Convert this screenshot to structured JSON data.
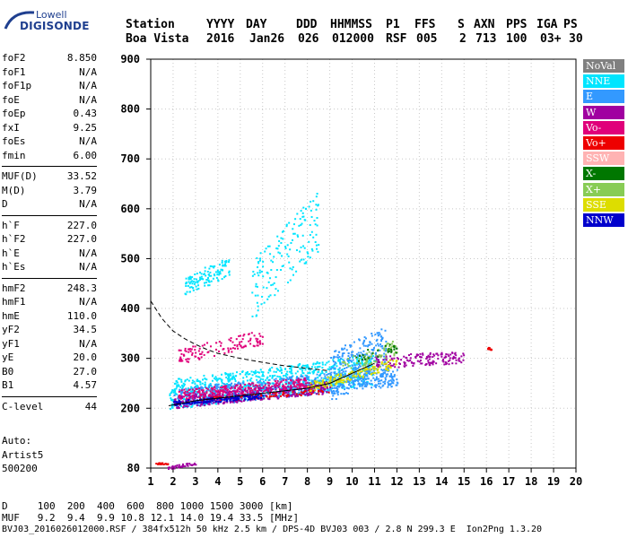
{
  "logo": {
    "top": "Lowell",
    "bottom": "DIGISONDE"
  },
  "header": {
    "labels": [
      "Station",
      "YYYY",
      "DAY",
      "DDD",
      "HHMMSS",
      "P1",
      "FFS",
      "S",
      "AXN",
      "PPS",
      "IGA",
      "PS"
    ],
    "values": [
      "Boa Vista",
      "2016",
      "Jan26",
      "026",
      "012000",
      "RSF",
      "005",
      "2",
      "713",
      "100",
      "03+",
      "30"
    ]
  },
  "params": [
    {
      "name": "foF2",
      "value": "8.850"
    },
    {
      "name": "foF1",
      "value": "N/A"
    },
    {
      "name": "foF1p",
      "value": "N/A"
    },
    {
      "name": "foE",
      "value": "N/A"
    },
    {
      "name": "foEp",
      "value": "0.43"
    },
    {
      "name": "fxI",
      "value": "9.25"
    },
    {
      "name": "foEs",
      "value": "N/A"
    },
    {
      "name": "fmin",
      "value": "6.00"
    },
    {
      "name": "MUF(D)",
      "value": "33.52"
    },
    {
      "name": "M(D)",
      "value": "3.79"
    },
    {
      "name": "D",
      "value": "N/A"
    },
    {
      "name": "h`F",
      "value": "227.0"
    },
    {
      "name": "h`F2",
      "value": "227.0"
    },
    {
      "name": "h`E",
      "value": "N/A"
    },
    {
      "name": "h`Es",
      "value": "N/A"
    },
    {
      "name": "hmF2",
      "value": "248.3"
    },
    {
      "name": "hmF1",
      "value": "N/A"
    },
    {
      "name": "hmE",
      "value": "110.0"
    },
    {
      "name": "yF2",
      "value": "34.5"
    },
    {
      "name": "yF1",
      "value": "N/A"
    },
    {
      "name": "yE",
      "value": "20.0"
    },
    {
      "name": "B0",
      "value": "27.0"
    },
    {
      "name": "B1",
      "value": "4.57"
    },
    {
      "name": "C-level",
      "value": "44"
    }
  ],
  "auto": [
    "Auto:",
    "Artist5",
    "500200"
  ],
  "legend": [
    {
      "label": "NoVal",
      "color": "#808080",
      "text": "#ffffff"
    },
    {
      "label": "NNE",
      "color": "#00e5ff",
      "text": "#ffffff"
    },
    {
      "label": "E",
      "color": "#3399ff",
      "text": "#ffffff"
    },
    {
      "label": "W",
      "color": "#a000a0",
      "text": "#ffffff"
    },
    {
      "label": "Vo-",
      "color": "#e0007a",
      "text": "#ffffff"
    },
    {
      "label": "Vo+",
      "color": "#ee0000",
      "text": "#ffffff"
    },
    {
      "label": "SSW",
      "color": "#ffb3b3",
      "text": "#ffffff"
    },
    {
      "label": "X-",
      "color": "#007700",
      "text": "#ffffff"
    },
    {
      "label": "X+",
      "color": "#88cc55",
      "text": "#ffffff"
    },
    {
      "label": "SSE",
      "color": "#dddd00",
      "text": "#ffffff"
    },
    {
      "label": "NNW",
      "color": "#0000cc",
      "text": "#ffffff"
    }
  ],
  "footer": {
    "line1": "D     100  200  400  600  800 1000 1500 3000 [km]",
    "line2": "MUF   9.2  9.4  9.9 10.8 12.1 14.0 19.4 33.5 [MHz]",
    "line3": "BVJ03_2016026012000.RSF / 384fx512h 50 kHz 2.5 km / DPS-4D BVJ03 003 / 2.8 N 299.3 E  Ion2Png 1.3.20"
  },
  "chart_data": {
    "type": "scatter",
    "title": "",
    "xlabel": "",
    "ylabel": "",
    "xlim": [
      1,
      20
    ],
    "ylim": [
      80,
      900
    ],
    "xticks": [
      1,
      2,
      3,
      4,
      5,
      6,
      7,
      8,
      9,
      10,
      11,
      12,
      13,
      14,
      15,
      16,
      17,
      18,
      19,
      20
    ],
    "yticks": [
      80,
      200,
      300,
      400,
      500,
      600,
      700,
      800,
      900
    ],
    "grid": true,
    "legend_position": "right",
    "series": [
      {
        "name": "NNE",
        "color": "#00e5ff",
        "clusters": [
          {
            "fx": [
              1.8,
              11
            ],
            "base": [
              220,
              270
            ],
            "spread": 60,
            "count": 900
          },
          {
            "fx": [
              2.5,
              4.5
            ],
            "base": [
              440,
              480
            ],
            "spread": 40,
            "count": 120
          },
          {
            "fx": [
              5.5,
              8.5
            ],
            "base": [
              420,
              560
            ],
            "spread": 120,
            "count": 160
          }
        ]
      },
      {
        "name": "E",
        "color": "#3399ff",
        "clusters": [
          {
            "fx": [
              2,
              12
            ],
            "base": [
              215,
              260
            ],
            "spread": 40,
            "count": 600
          },
          {
            "fx": [
              9,
              11.5
            ],
            "base": [
              250,
              300
            ],
            "spread": 100,
            "count": 300
          }
        ]
      },
      {
        "name": "W",
        "color": "#a000a0",
        "clusters": [
          {
            "fx": [
              2,
              9
            ],
            "base": [
              210,
              240
            ],
            "spread": 25,
            "count": 400
          },
          {
            "fx": [
              11,
              15
            ],
            "base": [
              290,
              300
            ],
            "spread": 25,
            "count": 160
          },
          {
            "fx": [
              1.7,
              3
            ],
            "base": [
              80,
              90
            ],
            "spread": 6,
            "count": 40
          }
        ]
      },
      {
        "name": "Vo-",
        "color": "#e0007a",
        "clusters": [
          {
            "fx": [
              2.2,
              8
            ],
            "base": [
              225,
              250
            ],
            "spread": 20,
            "count": 250
          },
          {
            "fx": [
              2.2,
              6
            ],
            "base": [
              300,
              340
            ],
            "spread": 30,
            "count": 120
          }
        ]
      },
      {
        "name": "Vo+",
        "color": "#ee0000",
        "clusters": [
          {
            "fx": [
              3,
              9
            ],
            "base": [
              215,
              235
            ],
            "spread": 10,
            "count": 80
          },
          {
            "fx": [
              16,
              16.2
            ],
            "base": [
              320,
              320
            ],
            "spread": 6,
            "count": 8
          },
          {
            "fx": [
              1.2,
              1.8
            ],
            "base": [
              90,
              90
            ],
            "spread": 3,
            "count": 20
          }
        ]
      },
      {
        "name": "SSE",
        "color": "#dddd00",
        "clusters": [
          {
            "fx": [
              8,
              12
            ],
            "base": [
              240,
              290
            ],
            "spread": 20,
            "count": 150
          }
        ]
      },
      {
        "name": "NNW",
        "color": "#0000cc",
        "clusters": [
          {
            "fx": [
              2,
              6
            ],
            "base": [
              210,
              225
            ],
            "spread": 10,
            "count": 150
          }
        ]
      },
      {
        "name": "X+",
        "color": "#88cc55",
        "clusters": [
          {
            "fx": [
              9.5,
              12
            ],
            "base": [
              280,
              320
            ],
            "spread": 30,
            "count": 60
          }
        ]
      },
      {
        "name": "X-",
        "color": "#007700",
        "clusters": [
          {
            "fx": [
              10,
              12
            ],
            "base": [
              300,
              320
            ],
            "spread": 20,
            "count": 30
          }
        ]
      }
    ],
    "curves": [
      {
        "name": "dashed",
        "style": "dashed",
        "points": [
          [
            1,
            415
          ],
          [
            1.5,
            380
          ],
          [
            2,
            355
          ],
          [
            2.5,
            340
          ],
          [
            3,
            328
          ],
          [
            3.5,
            318
          ],
          [
            4,
            310
          ],
          [
            5,
            300
          ],
          [
            6,
            292
          ],
          [
            7,
            285
          ],
          [
            8,
            280
          ],
          [
            9,
            275
          ]
        ]
      },
      {
        "name": "trace",
        "style": "solid",
        "points": [
          [
            1.8,
            205
          ],
          [
            3,
            215
          ],
          [
            4,
            220
          ],
          [
            5,
            225
          ],
          [
            6,
            230
          ],
          [
            7,
            235
          ],
          [
            8,
            240
          ],
          [
            9,
            250
          ],
          [
            10,
            270
          ],
          [
            11,
            290
          ]
        ]
      }
    ]
  }
}
